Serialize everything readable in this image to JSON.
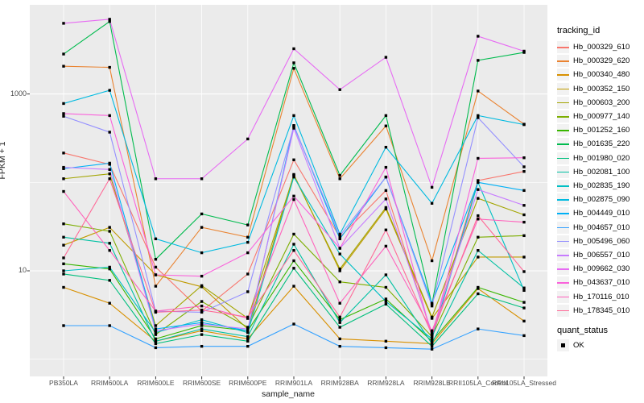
{
  "figure": {
    "bg": "#FFFFFF",
    "panel_bg": "#EBEBEB",
    "grid_color": "#FFFFFF",
    "tick_mark_color": "#333333",
    "tick_label_color": "#4D4D4D",
    "point_color": "#000000"
  },
  "axes": {
    "x_title": "sample_name",
    "y_title": "FPKM + 1",
    "y_ticks": [
      {
        "value": 10,
        "label": "10"
      },
      {
        "value": 1000,
        "label": "1000"
      }
    ],
    "y_gridlines": [
      1,
      10,
      100,
      1000
    ]
  },
  "legend": {
    "tracking_title": "tracking_id",
    "quant_title": "quant_status",
    "quant_items": [
      {
        "label": "OK"
      }
    ]
  },
  "chart_data": {
    "type": "line",
    "title": "",
    "xlabel": "sample_name",
    "ylabel": "FPKM + 1",
    "y_scale": "log10",
    "ylim": [
      0.64,
      9500
    ],
    "grid": true,
    "legend_position": "right",
    "x_categories": [
      "PB350LA",
      "RRIM600LA",
      "RRIM600LE",
      "RRIM600SE",
      "RRIM600PE",
      "RRIM901LA",
      "RRIM928BA",
      "RRIM928LA",
      "RRIM928LE",
      "RRII105LA_Control",
      "RRII105LA_Stressed"
    ],
    "series": [
      {
        "name": "Hb_000329_610",
        "color": "#F8766D",
        "values": [
          215,
          160,
          11,
          3.5,
          9.2,
          180,
          24,
          81,
          1.9,
          105,
          133
        ]
      },
      {
        "name": "Hb_000329_620",
        "color": "#EA8331",
        "values": [
          2060,
          2000,
          6.7,
          31,
          24,
          1950,
          110,
          435,
          13,
          1080,
          455
        ]
      },
      {
        "name": "Hb_000340_480",
        "color": "#D89000",
        "values": [
          6.5,
          4.3,
          1.6,
          2.1,
          1.7,
          6.7,
          1.7,
          1.6,
          1.5,
          6.3,
          2.7
        ]
      },
      {
        "name": "Hb_000352_150",
        "color": "#C09B00",
        "values": [
          19.5,
          31,
          9.0,
          6.6,
          2.2,
          123,
          10,
          50,
          2.9,
          14.3,
          14.3
        ]
      },
      {
        "name": "Hb_000603_200",
        "color": "#A3A500",
        "values": [
          110,
          125,
          2.4,
          6.8,
          2.9,
          120,
          10.5,
          52,
          3.0,
          66,
          43
        ]
      },
      {
        "name": "Hb_000977_140",
        "color": "#7CAE00",
        "values": [
          34,
          28,
          1.9,
          4.5,
          2.3,
          26,
          7.5,
          6.5,
          1.8,
          24,
          25
        ]
      },
      {
        "name": "Hb_001252_160",
        "color": "#39B600",
        "values": [
          12,
          10.5,
          1.7,
          2.4,
          2.1,
          13,
          2.8,
          4.8,
          1.6,
          6.5,
          4.4
        ]
      },
      {
        "name": "Hb_001635_220",
        "color": "#00BB4E",
        "values": [
          2830,
          6600,
          13.5,
          44,
          33,
          2250,
          120,
          570,
          4.2,
          2400,
          2950
        ]
      },
      {
        "name": "Hb_001980_020",
        "color": "#00BF7D",
        "values": [
          9.2,
          7.8,
          1.5,
          1.9,
          1.6,
          10.7,
          2.3,
          4.2,
          1.4,
          5.5,
          3.8
        ]
      },
      {
        "name": "Hb_002081_100",
        "color": "#00C1A3",
        "values": [
          24,
          20.5,
          1.6,
          2.2,
          1.8,
          20,
          2.6,
          9.0,
          1.5,
          17,
          6.4
        ]
      },
      {
        "name": "Hb_002835_190",
        "color": "#00BFC4",
        "values": [
          10,
          11,
          2.0,
          2.8,
          2.0,
          115,
          15.5,
          4.5,
          1.7,
          100,
          6.0
        ]
      },
      {
        "name": "Hb_002875_090",
        "color": "#00BAE0",
        "values": [
          780,
          1100,
          23,
          16,
          21,
          570,
          26,
          250,
          58,
          570,
          450
        ]
      },
      {
        "name": "Hb_004449_010",
        "color": "#00B0F6",
        "values": [
          143,
          165,
          2.2,
          2.6,
          2.1,
          440,
          23,
          115,
          4.3,
          100,
          81
        ]
      },
      {
        "name": "Hb_004657_010",
        "color": "#35A2FF",
        "values": [
          2.4,
          2.4,
          1.35,
          1.4,
          1.4,
          2.5,
          1.4,
          1.35,
          1.3,
          2.2,
          1.85
        ]
      },
      {
        "name": "Hb_005496_060",
        "color": "#9590FF",
        "values": [
          560,
          370,
          3.5,
          3.4,
          5.8,
          430,
          25,
          115,
          4.0,
          540,
          150
        ]
      },
      {
        "name": "Hb_006557_010",
        "color": "#C77CFF",
        "values": [
          148,
          140,
          2.1,
          2.5,
          2.2,
          410,
          18,
          65,
          2.0,
          83,
          55
        ]
      },
      {
        "name": "Hb_009662_030",
        "color": "#E76BF3",
        "values": [
          6300,
          7000,
          110,
          110,
          310,
          3250,
          1120,
          2600,
          88,
          4500,
          3050
        ]
      },
      {
        "name": "Hb_043637_010",
        "color": "#FA62DB",
        "values": [
          600,
          570,
          9.0,
          8.7,
          16,
          70,
          18,
          148,
          1.8,
          187,
          190
        ]
      },
      {
        "name": "Hb_170116_010",
        "color": "#FF62BC",
        "values": [
          79,
          17,
          3.5,
          4.0,
          2.9,
          64,
          4.3,
          19,
          2.1,
          38.5,
          35.5
        ]
      },
      {
        "name": "Hb_178345_010",
        "color": "#FF6A98",
        "values": [
          14,
          110,
          3.4,
          3.6,
          3.0,
          17,
          3.0,
          29,
          1.9,
          42,
          9.8
        ]
      }
    ]
  }
}
